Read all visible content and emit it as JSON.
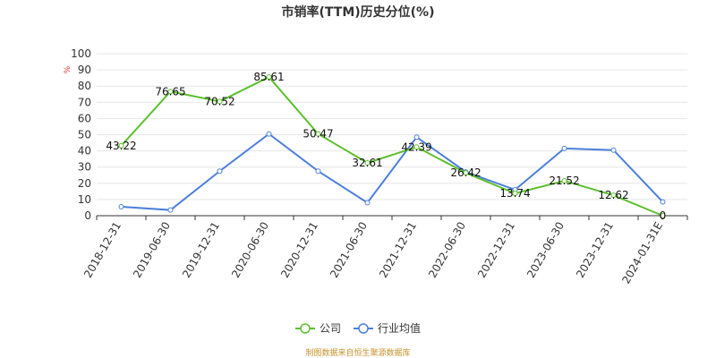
{
  "chart_data": {
    "type": "line",
    "title": "市销率(TTM)历史分位(%)",
    "ylabel": "%",
    "ylim": [
      0,
      100
    ],
    "yticks": [
      0,
      10,
      20,
      30,
      40,
      50,
      60,
      70,
      80,
      90,
      100
    ],
    "categories": [
      "2018-12-31",
      "2019-06-30",
      "2019-12-31",
      "2020-06-30",
      "2020-12-31",
      "2021-06-30",
      "2021-12-31",
      "2022-06-30",
      "2022-12-31",
      "2023-06-30",
      "2023-12-31",
      "2024-01-31E"
    ],
    "series": [
      {
        "name": "公司",
        "color": "#5cc02d",
        "values": [
          43.22,
          76.65,
          70.52,
          85.61,
          50.47,
          32.61,
          42.39,
          26.42,
          13.74,
          21.52,
          12.62,
          0
        ],
        "labels": [
          "43.22",
          "76.65",
          "70.52",
          "85.61",
          "50.47",
          "32.61",
          "42.39",
          "26.42",
          "13.74",
          "21.52",
          "12.62",
          "0"
        ]
      },
      {
        "name": "行业均值",
        "color": "#4c7fda",
        "values": [
          5.5,
          3.5,
          27.5,
          50.5,
          27.5,
          8,
          48.5,
          27,
          16,
          41.5,
          40.5,
          8.5
        ]
      }
    ],
    "grid": true,
    "legend": "bottom-center",
    "source": "制图数据来自恒生聚源数据库"
  }
}
